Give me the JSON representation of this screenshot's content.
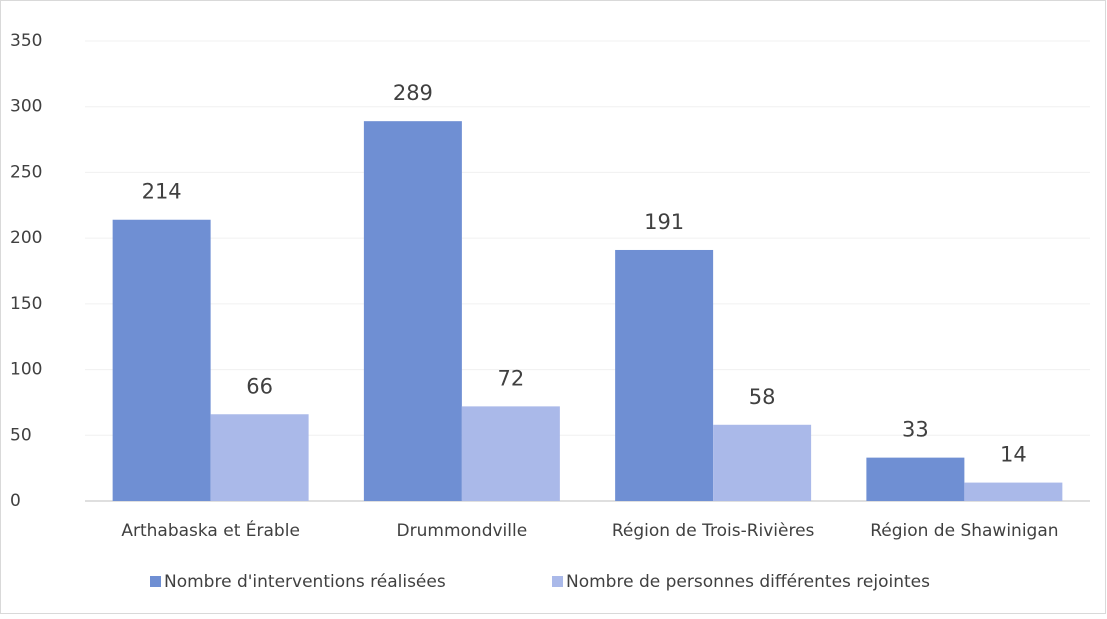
{
  "chart_data": {
    "type": "bar",
    "categories": [
      "Arthabaska et Érable",
      "Drummondville",
      "Région de Trois-Rivières",
      "Région de Shawinigan"
    ],
    "series": [
      {
        "name": "Nombre d'interventions réalisées",
        "color": "#6f8fd3",
        "values": [
          214,
          289,
          191,
          33
        ]
      },
      {
        "name": "Nombre de personnes différentes rejointes",
        "color": "#aab9e9",
        "values": [
          66,
          72,
          58,
          14
        ]
      }
    ],
    "ylim": [
      0,
      350
    ],
    "yticks": [
      0,
      50,
      100,
      150,
      200,
      250,
      300,
      350
    ],
    "grid": true,
    "legend": "bottom"
  }
}
